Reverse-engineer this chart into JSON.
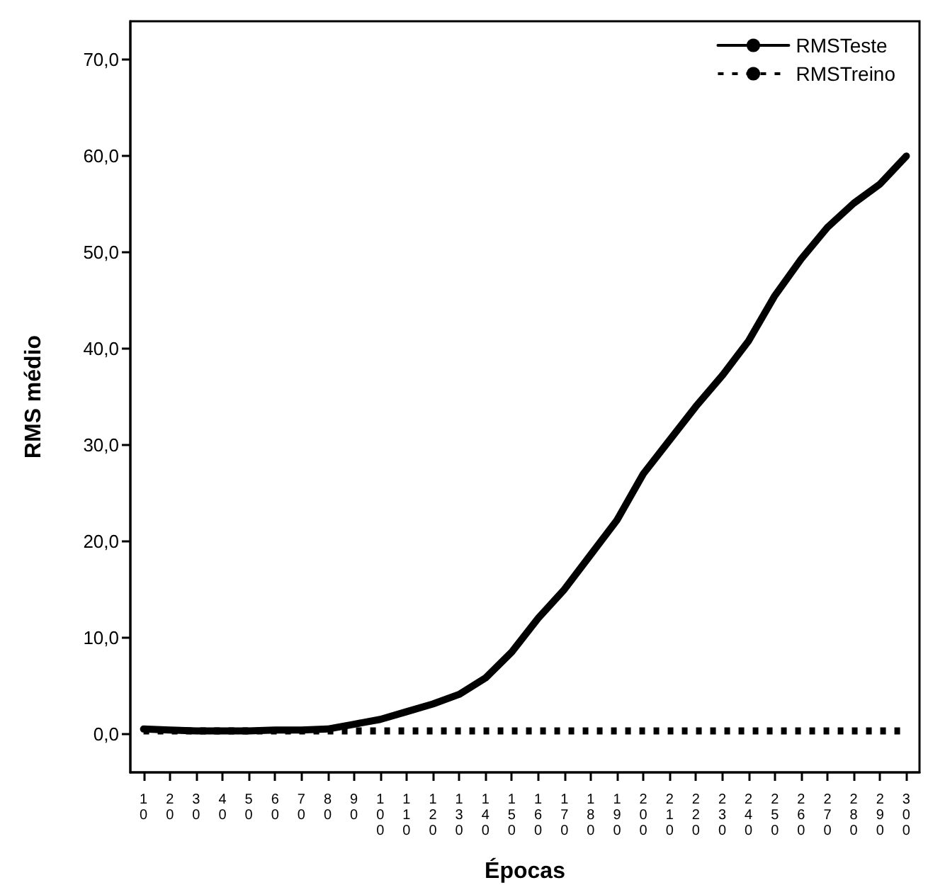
{
  "chart_data": {
    "type": "line",
    "xlabel": "Épocas",
    "ylabel": "RMS médio",
    "categories": [
      "10",
      "20",
      "30",
      "40",
      "50",
      "60",
      "70",
      "80",
      "90",
      "100",
      "110",
      "120",
      "130",
      "140",
      "150",
      "160",
      "170",
      "180",
      "190",
      "200",
      "210",
      "220",
      "230",
      "240",
      "250",
      "260",
      "270",
      "280",
      "290",
      "300"
    ],
    "series": [
      {
        "name": "RMSTeste",
        "color": "#000000",
        "line_style": "solid",
        "values": [
          0.5,
          0.4,
          0.3,
          0.3,
          0.3,
          0.4,
          0.4,
          0.5,
          1.0,
          1.5,
          2.3,
          3.1,
          4.1,
          5.8,
          8.5,
          12,
          15,
          18.6,
          22.2,
          27,
          30.5,
          34,
          37.2,
          40.8,
          45.5,
          49.3,
          52.6,
          55.1,
          57.1,
          60
        ]
      },
      {
        "name": "RMSTreino",
        "color": "#000000",
        "line_style": "dotted",
        "values": [
          0.3,
          0.3,
          0.3,
          0.3,
          0.3,
          0.3,
          0.3,
          0.3,
          0.3,
          0.3,
          0.3,
          0.3,
          0.3,
          0.3,
          0.3,
          0.3,
          0.3,
          0.3,
          0.3,
          0.3,
          0.3,
          0.3,
          0.3,
          0.3,
          0.3,
          0.3,
          0.3,
          0.3,
          0.3,
          0.3
        ]
      }
    ],
    "ylim": [
      -4,
      74
    ],
    "yticks": [
      {
        "value": 0,
        "label": "0,0"
      },
      {
        "value": 10,
        "label": "10,0"
      },
      {
        "value": 20,
        "label": "20,0"
      },
      {
        "value": 30,
        "label": "30,0"
      },
      {
        "value": 40,
        "label": "40,0"
      },
      {
        "value": 50,
        "label": "50,0"
      },
      {
        "value": 60,
        "label": "60,0"
      },
      {
        "value": 70,
        "label": "70,0"
      }
    ],
    "grid": false,
    "legend": "top right",
    "marker": "none"
  }
}
